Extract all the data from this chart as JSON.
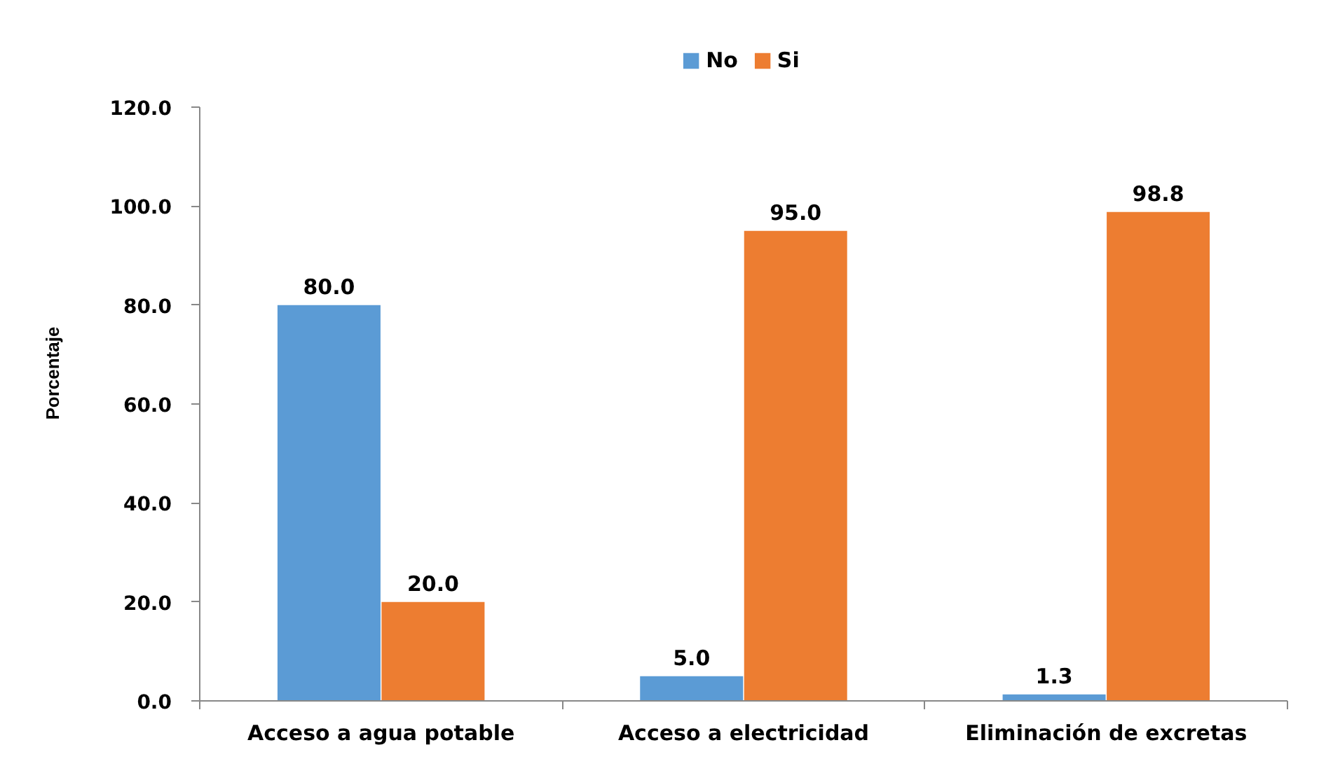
{
  "chart_data": {
    "type": "bar",
    "categories": [
      "Acceso a agua potable",
      "Acceso a electricidad",
      "Eliminación de excretas"
    ],
    "series": [
      {
        "name": "No",
        "color": "#5b9bd5",
        "values": [
          80.0,
          5.0,
          1.3
        ],
        "value_labels": [
          "80.0",
          "5.0",
          "1.3"
        ]
      },
      {
        "name": "Si",
        "color": "#ed7d31",
        "values": [
          20.0,
          95.0,
          98.8
        ],
        "value_labels": [
          "20.0",
          "95.0",
          "98.8"
        ]
      }
    ],
    "ylabel": "Porcentaje",
    "ylim": [
      0,
      120
    ],
    "yticks": [
      {
        "value": 0,
        "label": "0.0"
      },
      {
        "value": 20,
        "label": "20.0"
      },
      {
        "value": 40,
        "label": "40.0"
      },
      {
        "value": 60,
        "label": "60.0"
      },
      {
        "value": 80,
        "label": "80.0"
      },
      {
        "value": 100,
        "label": "100.0"
      },
      {
        "value": 120,
        "label": "120.0"
      }
    ],
    "grid": false,
    "legend": "top"
  }
}
